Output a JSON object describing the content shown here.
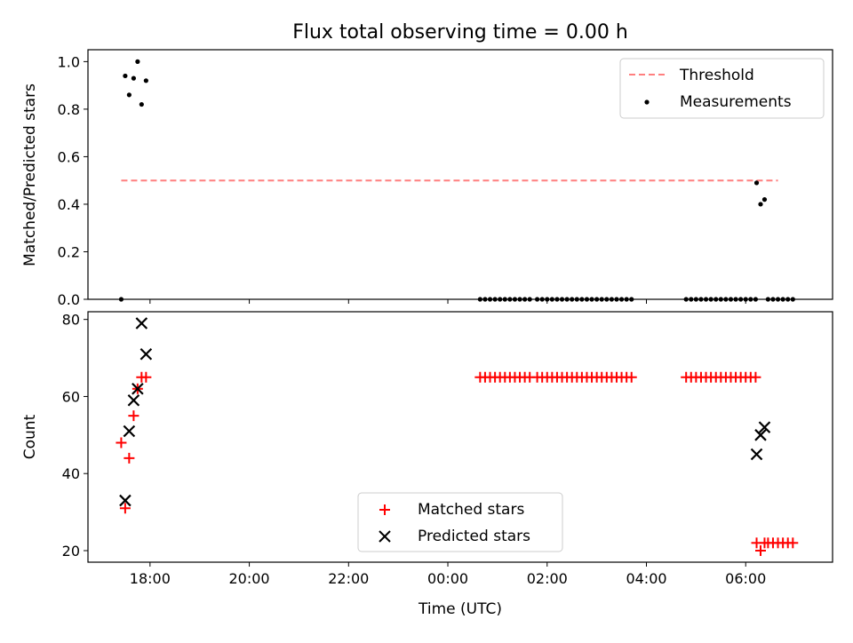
{
  "chart_data": {
    "title": "Flux total observing time = 0.00 h",
    "xlabel": "Time (UTC)",
    "x_ticks": [
      "18:00",
      "20:00",
      "22:00",
      "00:00",
      "02:00",
      "04:00",
      "06:00"
    ],
    "x_range_hours": [
      16.75,
      31.75
    ],
    "panels": [
      {
        "type": "scatter",
        "ylabel": "Matched/Predicted stars",
        "ylim": [
          0,
          1.05
        ],
        "y_ticks": [
          "0.0",
          "0.2",
          "0.4",
          "0.6",
          "0.8",
          "1.0"
        ],
        "y_tick_values": [
          0,
          0.2,
          0.4,
          0.6,
          0.8,
          1.0
        ],
        "legend_position": "top-right",
        "threshold": {
          "name": "Threshold",
          "value": 0.5,
          "x_start": 17.42,
          "x_end": 30.65,
          "color": "#ff7f7f"
        },
        "series": [
          {
            "name": "Measurements",
            "color": "#000000",
            "marker": "dot",
            "x": [
              17.42,
              17.5,
              17.58,
              17.67,
              17.75,
              17.83,
              17.92,
              24.65,
              24.75,
              24.85,
              24.95,
              25.05,
              25.15,
              25.25,
              25.35,
              25.45,
              25.55,
              25.65,
              25.8,
              25.9,
              26.0,
              26.1,
              26.2,
              26.3,
              26.4,
              26.5,
              26.6,
              26.7,
              26.8,
              26.9,
              27.0,
              27.1,
              27.2,
              27.3,
              27.4,
              27.5,
              27.6,
              27.7,
              28.8,
              28.9,
              29.0,
              29.1,
              29.2,
              29.3,
              29.4,
              29.5,
              29.6,
              29.7,
              29.8,
              29.9,
              30.0,
              30.1,
              30.2,
              30.22,
              30.3,
              30.38,
              30.45,
              30.55,
              30.65,
              30.75,
              30.85,
              30.95
            ],
            "y": [
              0,
              0.94,
              0.86,
              0.93,
              1.0,
              0.82,
              0.92,
              0,
              0,
              0,
              0,
              0,
              0,
              0,
              0,
              0,
              0,
              0,
              0,
              0,
              0,
              0,
              0,
              0,
              0,
              0,
              0,
              0,
              0,
              0,
              0,
              0,
              0,
              0,
              0,
              0,
              0,
              0,
              0,
              0,
              0,
              0,
              0,
              0,
              0,
              0,
              0,
              0,
              0,
              0,
              0,
              0,
              0,
              0.49,
              0.4,
              0.42,
              0,
              0,
              0,
              0,
              0,
              0
            ]
          }
        ]
      },
      {
        "type": "scatter",
        "ylabel": "Count",
        "ylim": [
          17,
          82
        ],
        "y_ticks": [
          "20",
          "40",
          "60",
          "80"
        ],
        "y_tick_values": [
          20,
          40,
          60,
          80
        ],
        "legend_position": "lower-center",
        "series": [
          {
            "name": "Matched stars",
            "color": "#ff0000",
            "marker": "plus",
            "x": [
              17.42,
              17.5,
              17.58,
              17.67,
              17.75,
              17.83,
              17.92,
              24.65,
              24.75,
              24.85,
              24.95,
              25.05,
              25.15,
              25.25,
              25.35,
              25.45,
              25.55,
              25.65,
              25.8,
              25.9,
              26.0,
              26.1,
              26.2,
              26.3,
              26.4,
              26.5,
              26.6,
              26.7,
              26.8,
              26.9,
              27.0,
              27.1,
              27.2,
              27.3,
              27.4,
              27.5,
              27.6,
              27.7,
              28.8,
              28.9,
              29.0,
              29.1,
              29.2,
              29.3,
              29.4,
              29.5,
              29.6,
              29.7,
              29.8,
              29.9,
              30.0,
              30.1,
              30.2,
              30.22,
              30.3,
              30.38,
              30.45,
              30.55,
              30.65,
              30.75,
              30.85,
              30.95
            ],
            "y": [
              48,
              31,
              44,
              55,
              62,
              65,
              65,
              65,
              65,
              65,
              65,
              65,
              65,
              65,
              65,
              65,
              65,
              65,
              65,
              65,
              65,
              65,
              65,
              65,
              65,
              65,
              65,
              65,
              65,
              65,
              65,
              65,
              65,
              65,
              65,
              65,
              65,
              65,
              65,
              65,
              65,
              65,
              65,
              65,
              65,
              65,
              65,
              65,
              65,
              65,
              65,
              65,
              65,
              22,
              20,
              22,
              22,
              22,
              22,
              22,
              22,
              22
            ]
          },
          {
            "name": "Predicted stars",
            "color": "#000000",
            "marker": "x",
            "x": [
              17.5,
              17.58,
              17.67,
              17.75,
              17.83,
              17.92,
              30.22,
              30.3,
              30.38
            ],
            "y": [
              33,
              51,
              59,
              62,
              79,
              71,
              45,
              50,
              52
            ]
          }
        ]
      }
    ]
  }
}
